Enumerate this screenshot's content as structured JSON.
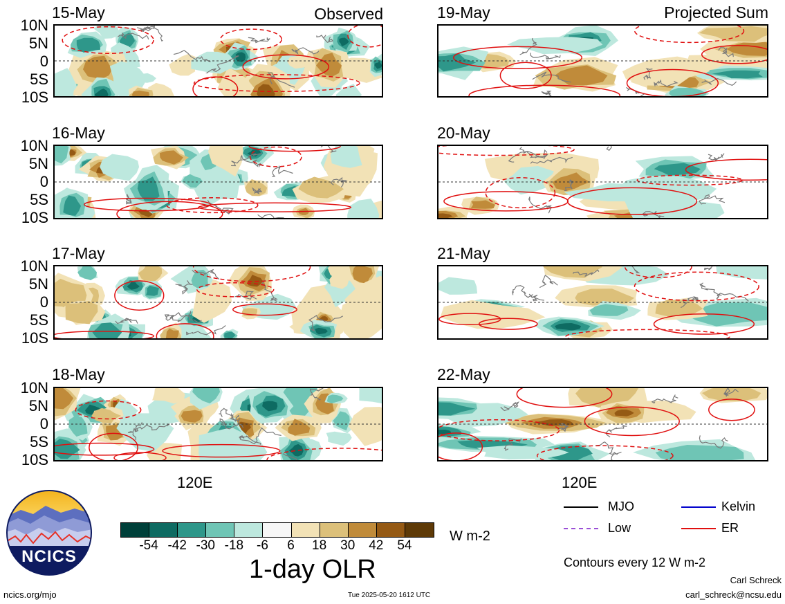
{
  "columns": {
    "left": {
      "header": "Observed"
    },
    "right": {
      "header": "Projected Sum"
    }
  },
  "panels_left": [
    {
      "date": "15-May"
    },
    {
      "date": "16-May"
    },
    {
      "date": "17-May"
    },
    {
      "date": "18-May"
    }
  ],
  "panels_right": [
    {
      "date": "19-May"
    },
    {
      "date": "20-May"
    },
    {
      "date": "21-May"
    },
    {
      "date": "22-May"
    }
  ],
  "lat_ticks": [
    "10N",
    "5N",
    "0",
    "5S",
    "10S"
  ],
  "lon_tick": "120E",
  "colorbar": {
    "colors": [
      "#00403a",
      "#0e6b62",
      "#2e978a",
      "#6fc5b5",
      "#bde8de",
      "#f7f7f7",
      "#f2e2b6",
      "#dcc07a",
      "#c08b3a",
      "#955a14",
      "#5e3a07"
    ],
    "tick_labels": [
      "-54",
      "-42",
      "-30",
      "-18",
      "-6",
      "6",
      "18",
      "30",
      "42",
      "54"
    ],
    "units": "W m-2",
    "title": "1-day OLR"
  },
  "legend": {
    "items": [
      {
        "label": "MJO",
        "color": "#000000",
        "style": "solid"
      },
      {
        "label": "Kelvin",
        "color": "#0000cc",
        "style": "solid"
      },
      {
        "label": "Low",
        "color": "#9a4fd6",
        "style": "dashed"
      },
      {
        "label": "ER",
        "color": "#e01010",
        "style": "solid"
      }
    ],
    "contour_note": "Contours every 12 W m-2"
  },
  "logo": {
    "text": "NCICS"
  },
  "footer": {
    "url": "ncics.org/mjo",
    "timestamp": "Tue 2025-05-20 1612 UTC",
    "author": "Carl Schreck",
    "email": "carl_schreck@ncsu.edu"
  }
}
